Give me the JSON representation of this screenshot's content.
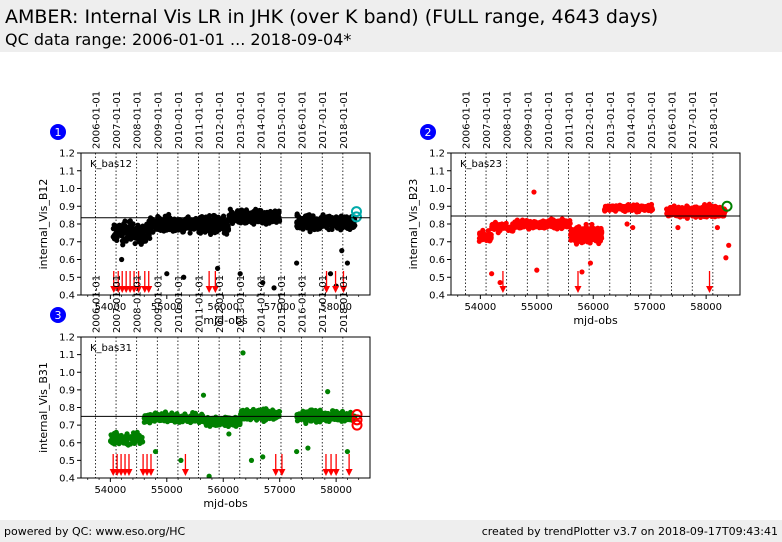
{
  "header": {
    "title": "AMBER: Internal Vis LR in JHK (over K band) (FULL range, 4643 days)",
    "subtitle": "QC data range: 2006-01-01 ... 2018-09-04*"
  },
  "footer": {
    "left": "powered by QC: www.eso.org/HC",
    "right": "created by trendPlotter v3.7 on 2018-09-17T09:43:41"
  },
  "colors": {
    "baseline": "#000000",
    "outlier_arrow": "#ff0000",
    "marker_bas12": "#000000",
    "marker_bas23": "#ff0000",
    "marker_bas31": "#008000",
    "panel_badge": "#0000ff"
  },
  "date_ticks": [
    "2006-01-01",
    "2007-01-01",
    "2008-01-01",
    "2009-01-01",
    "2010-01-01",
    "2011-01-01",
    "2012-01-01",
    "2013-01-01",
    "2014-01-01",
    "2015-01-01",
    "2016-01-01",
    "2017-01-01",
    "2018-01-01"
  ],
  "date_tick_mjd": [
    53736,
    54101,
    54466,
    54832,
    55197,
    55562,
    55927,
    56293,
    56658,
    57023,
    57388,
    57754,
    58119
  ],
  "chart_data": [
    {
      "type": "scatter",
      "panel_number": "1",
      "series_label": "K_bas12",
      "xlabel": "mjd-obs",
      "ylabel": "internal_Vis_B12",
      "xlim": [
        53480,
        58600
      ],
      "ylim": [
        0.4,
        1.2
      ],
      "xticks": [
        54000,
        55000,
        56000,
        57000,
        58000
      ],
      "yticks": [
        0.4,
        0.5,
        0.6,
        0.7,
        0.8,
        0.9,
        1.0,
        1.1,
        1.2
      ],
      "reference_line": 0.835,
      "marker_color": "#000000",
      "latest_marker_color": "#00aaaa",
      "latest_points": [
        {
          "x": 58360,
          "y": 0.84
        },
        {
          "x": 58360,
          "y": 0.87
        }
      ],
      "segments": [
        {
          "x0": 54050,
          "x1": 54700,
          "y": 0.75,
          "spread": 0.1,
          "n": 150
        },
        {
          "x0": 54700,
          "x1": 55650,
          "y": 0.8,
          "spread": 0.07,
          "n": 280
        },
        {
          "x0": 55650,
          "x1": 56100,
          "y": 0.79,
          "spread": 0.08,
          "n": 150
        },
        {
          "x0": 56100,
          "x1": 57000,
          "y": 0.84,
          "spread": 0.06,
          "n": 260
        },
        {
          "x0": 57300,
          "x1": 58330,
          "y": 0.81,
          "spread": 0.07,
          "n": 320
        }
      ],
      "outliers": [
        {
          "x": 55000,
          "y": 0.52
        },
        {
          "x": 55300,
          "y": 0.5
        },
        {
          "x": 55900,
          "y": 0.55
        },
        {
          "x": 56300,
          "y": 0.52
        },
        {
          "x": 56700,
          "y": 0.47
        },
        {
          "x": 57300,
          "y": 0.58
        },
        {
          "x": 57900,
          "y": 0.52
        },
        {
          "x": 58000,
          "y": 0.45
        },
        {
          "x": 58200,
          "y": 0.58
        },
        {
          "x": 56900,
          "y": 0.44
        },
        {
          "x": 54200,
          "y": 0.6
        },
        {
          "x": 58100,
          "y": 0.65
        }
      ],
      "arrows": [
        54060,
        54140,
        54210,
        54280,
        54350,
        54420,
        54500,
        54610,
        54680,
        55750,
        55860,
        57830,
        57990,
        58130
      ]
    },
    {
      "type": "scatter",
      "panel_number": "2",
      "series_label": "K_bas23",
      "xlabel": "mjd-obs",
      "ylabel": "internal_Vis_B23",
      "xlim": [
        53480,
        58600
      ],
      "ylim": [
        0.4,
        1.2
      ],
      "xticks": [
        54000,
        55000,
        56000,
        57000,
        58000
      ],
      "yticks": [
        0.4,
        0.5,
        0.6,
        0.7,
        0.8,
        0.9,
        1.0,
        1.1,
        1.2
      ],
      "reference_line": 0.845,
      "marker_color": "#ff0000",
      "latest_marker_color": "#008000",
      "latest_points": [
        {
          "x": 58370,
          "y": 0.9
        }
      ],
      "segments": [
        {
          "x0": 53980,
          "x1": 54200,
          "y": 0.73,
          "spread": 0.04,
          "n": 50
        },
        {
          "x0": 54200,
          "x1": 54600,
          "y": 0.78,
          "spread": 0.04,
          "n": 70
        },
        {
          "x0": 54600,
          "x1": 55600,
          "y": 0.8,
          "spread": 0.04,
          "n": 240
        },
        {
          "x0": 55600,
          "x1": 56150,
          "y": 0.74,
          "spread": 0.07,
          "n": 220
        },
        {
          "x0": 56200,
          "x1": 57050,
          "y": 0.89,
          "spread": 0.03,
          "n": 200
        },
        {
          "x0": 57300,
          "x1": 58350,
          "y": 0.87,
          "spread": 0.05,
          "n": 300
        }
      ],
      "outliers": [
        {
          "x": 54200,
          "y": 0.52
        },
        {
          "x": 54350,
          "y": 0.47
        },
        {
          "x": 54950,
          "y": 0.98
        },
        {
          "x": 55000,
          "y": 0.54
        },
        {
          "x": 55800,
          "y": 0.53
        },
        {
          "x": 55950,
          "y": 0.58
        },
        {
          "x": 56600,
          "y": 0.8
        },
        {
          "x": 56700,
          "y": 0.78
        },
        {
          "x": 57500,
          "y": 0.78
        },
        {
          "x": 58400,
          "y": 0.68
        },
        {
          "x": 58350,
          "y": 0.61
        },
        {
          "x": 58200,
          "y": 0.78
        }
      ],
      "arrows": [
        54400,
        55730,
        58060
      ]
    },
    {
      "type": "scatter",
      "panel_number": "3",
      "series_label": "K_bas31",
      "xlabel": "mjd-obs",
      "ylabel": "internal_Vis_B31",
      "xlim": [
        53480,
        58600
      ],
      "ylim": [
        0.4,
        1.2
      ],
      "xticks": [
        54000,
        55000,
        56000,
        57000,
        58000
      ],
      "yticks": [
        0.4,
        0.5,
        0.6,
        0.7,
        0.8,
        0.9,
        1.0,
        1.1,
        1.2
      ],
      "reference_line": 0.75,
      "marker_color": "#008000",
      "latest_marker_color": "#ff0000",
      "latest_points": [
        {
          "x": 58370,
          "y": 0.7
        },
        {
          "x": 58370,
          "y": 0.73
        },
        {
          "x": 58370,
          "y": 0.76
        }
      ],
      "segments": [
        {
          "x0": 54000,
          "x1": 54600,
          "y": 0.62,
          "spread": 0.06,
          "n": 120
        },
        {
          "x0": 54600,
          "x1": 55650,
          "y": 0.74,
          "spread": 0.04,
          "n": 280
        },
        {
          "x0": 55650,
          "x1": 56300,
          "y": 0.72,
          "spread": 0.04,
          "n": 170
        },
        {
          "x0": 56300,
          "x1": 57000,
          "y": 0.76,
          "spread": 0.05,
          "n": 190
        },
        {
          "x0": 57300,
          "x1": 58330,
          "y": 0.75,
          "spread": 0.05,
          "n": 300
        }
      ],
      "outliers": [
        {
          "x": 56350,
          "y": 1.11
        },
        {
          "x": 55650,
          "y": 0.87
        },
        {
          "x": 57850,
          "y": 0.89
        },
        {
          "x": 55250,
          "y": 0.5
        },
        {
          "x": 55750,
          "y": 0.41
        },
        {
          "x": 56500,
          "y": 0.5
        },
        {
          "x": 56700,
          "y": 0.52
        },
        {
          "x": 57300,
          "y": 0.55
        },
        {
          "x": 57500,
          "y": 0.57
        },
        {
          "x": 58200,
          "y": 0.55
        },
        {
          "x": 54800,
          "y": 0.55
        },
        {
          "x": 56100,
          "y": 0.65
        }
      ],
      "arrows": [
        54050,
        54120,
        54190,
        54260,
        54330,
        54580,
        54650,
        54720,
        55330,
        56930,
        57040,
        57820,
        57910,
        58000,
        58230
      ]
    }
  ]
}
